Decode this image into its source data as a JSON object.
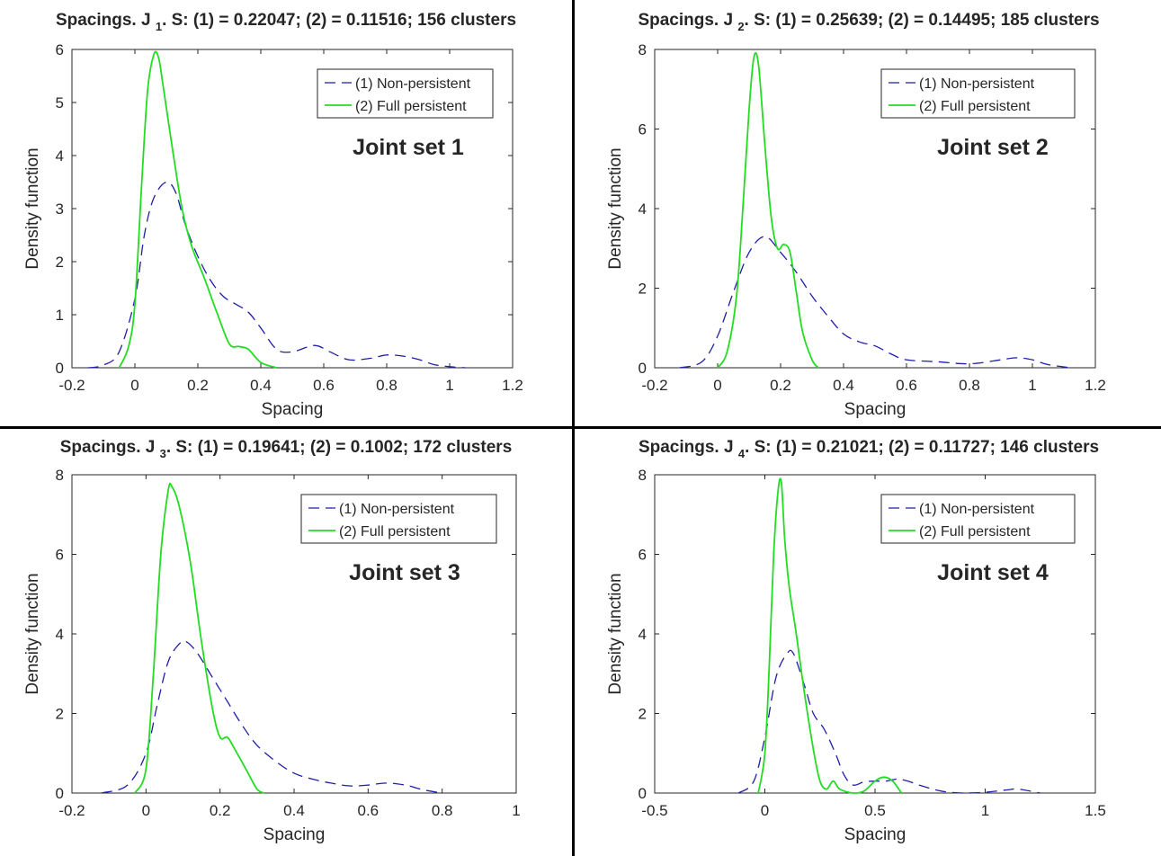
{
  "figure": {
    "colors": {
      "non_persistent": "#1f1fa8",
      "full_persistent": "#22dd22",
      "axis": "#262626"
    }
  },
  "chart_data": [
    {
      "type": "line",
      "title": "Spacings. J",
      "title_sub": "1",
      "title_rest": ". S: (1) = 0.22047; (2) = 0.11516; 156 clusters",
      "annotation": "Joint set 1",
      "xlabel": "Spacing",
      "ylabel": "Density function",
      "xlim": [
        -0.2,
        1.2
      ],
      "ylim": [
        0,
        6
      ],
      "xticks": [
        "-0.2",
        "0",
        "0.2",
        "0.4",
        "0.6",
        "0.8",
        "1",
        "1.2"
      ],
      "yticks": [
        "0",
        "1",
        "2",
        "3",
        "4",
        "5",
        "6"
      ],
      "legend_position": "top-right",
      "series": [
        {
          "name": "(1) Non-persistent",
          "style": "dashed",
          "x": [
            -0.15,
            -0.1,
            -0.05,
            0,
            0.03,
            0.06,
            0.1,
            0.13,
            0.16,
            0.2,
            0.24,
            0.28,
            0.32,
            0.36,
            0.4,
            0.45,
            0.5,
            0.57,
            0.62,
            0.68,
            0.75,
            0.8,
            0.85,
            0.9,
            0.95,
            1.0,
            1.05
          ],
          "y": [
            0,
            0.05,
            0.3,
            1.3,
            2.5,
            3.2,
            3.5,
            3.3,
            2.7,
            2.1,
            1.65,
            1.35,
            1.2,
            1.05,
            0.75,
            0.35,
            0.3,
            0.42,
            0.3,
            0.15,
            0.18,
            0.24,
            0.22,
            0.16,
            0.06,
            0.02,
            0
          ]
        },
        {
          "name": "(2) Full persistent",
          "style": "solid",
          "x": [
            -0.05,
            -0.02,
            0,
            0.02,
            0.04,
            0.06,
            0.075,
            0.09,
            0.12,
            0.15,
            0.18,
            0.22,
            0.26,
            0.3,
            0.33,
            0.36,
            0.4,
            0.45
          ],
          "y": [
            0,
            0.4,
            1.2,
            3.3,
            5.2,
            5.9,
            5.85,
            5.3,
            4.1,
            3.0,
            2.3,
            1.7,
            1.05,
            0.45,
            0.4,
            0.35,
            0.1,
            0
          ]
        }
      ]
    },
    {
      "type": "line",
      "title": "Spacings. J",
      "title_sub": "2",
      "title_rest": ". S: (1) = 0.25639; (2) = 0.14495; 185 clusters",
      "annotation": "Joint set 2",
      "xlabel": "Spacing",
      "ylabel": "Density function",
      "xlim": [
        -0.2,
        1.2
      ],
      "ylim": [
        0,
        8
      ],
      "xticks": [
        "-0.2",
        "0",
        "0.2",
        "0.4",
        "0.6",
        "0.8",
        "1",
        "1.2"
      ],
      "yticks": [
        "0",
        "2",
        "4",
        "6",
        "8"
      ],
      "legend_position": "top-right",
      "series": [
        {
          "name": "(1) Non-persistent",
          "style": "dashed",
          "x": [
            -0.12,
            -0.05,
            0,
            0.05,
            0.1,
            0.15,
            0.2,
            0.25,
            0.3,
            0.35,
            0.4,
            0.45,
            0.5,
            0.55,
            0.6,
            0.7,
            0.8,
            0.9,
            0.95,
            1.0,
            1.05,
            1.12
          ],
          "y": [
            0,
            0.15,
            0.8,
            1.9,
            2.9,
            3.3,
            2.9,
            2.4,
            1.8,
            1.3,
            0.85,
            0.65,
            0.55,
            0.35,
            0.2,
            0.15,
            0.1,
            0.2,
            0.25,
            0.2,
            0.08,
            0
          ]
        },
        {
          "name": "(2) Full persistent",
          "style": "solid",
          "x": [
            0,
            0.03,
            0.06,
            0.08,
            0.1,
            0.115,
            0.13,
            0.15,
            0.17,
            0.19,
            0.21,
            0.23,
            0.25,
            0.27,
            0.3,
            0.32
          ],
          "y": [
            0,
            0.4,
            1.8,
            4.0,
            6.5,
            7.8,
            7.6,
            5.6,
            3.8,
            3.0,
            3.1,
            2.9,
            1.9,
            0.9,
            0.2,
            0
          ]
        }
      ]
    },
    {
      "type": "line",
      "title": "Spacings. J",
      "title_sub": "3",
      "title_rest": ". S: (1) = 0.19641; (2) = 0.1002; 172 clusters",
      "annotation": "Joint set 3",
      "xlabel": "Spacing",
      "ylabel": "Density function",
      "xlim": [
        -0.2,
        1
      ],
      "ylim": [
        0,
        8
      ],
      "xticks": [
        "-0.2",
        "0",
        "0.2",
        "0.4",
        "0.6",
        "0.8",
        "1"
      ],
      "yticks": [
        "0",
        "2",
        "4",
        "6",
        "8"
      ],
      "legend_position": "top-right",
      "series": [
        {
          "name": "(1) Non-persistent",
          "style": "dashed",
          "x": [
            -0.12,
            -0.05,
            0,
            0.03,
            0.06,
            0.09,
            0.11,
            0.14,
            0.18,
            0.22,
            0.26,
            0.3,
            0.35,
            0.4,
            0.45,
            0.5,
            0.55,
            0.6,
            0.65,
            0.7,
            0.75,
            0.8
          ],
          "y": [
            0,
            0.2,
            1.0,
            2.2,
            3.3,
            3.75,
            3.8,
            3.5,
            2.9,
            2.3,
            1.7,
            1.2,
            0.8,
            0.5,
            0.35,
            0.25,
            0.18,
            0.2,
            0.25,
            0.2,
            0.08,
            0
          ]
        },
        {
          "name": "(2) Full persistent",
          "style": "solid",
          "x": [
            -0.03,
            0,
            0.02,
            0.04,
            0.06,
            0.07,
            0.09,
            0.12,
            0.15,
            0.18,
            0.2,
            0.22,
            0.24,
            0.27,
            0.3,
            0.32
          ],
          "y": [
            0,
            0.6,
            3.0,
            6.0,
            7.6,
            7.7,
            7.2,
            5.8,
            3.8,
            2.1,
            1.4,
            1.4,
            1.1,
            0.6,
            0.1,
            0
          ]
        }
      ]
    },
    {
      "type": "line",
      "title": "Spacings. J",
      "title_sub": "4",
      "title_rest": ". S: (1) = 0.21021; (2) = 0.11727; 146 clusters",
      "annotation": "Joint set 4",
      "xlabel": "Spacing",
      "ylabel": "Density function",
      "xlim": [
        -0.5,
        1.5
      ],
      "ylim": [
        0,
        8
      ],
      "xticks": [
        "-0.5",
        "0",
        "0.5",
        "1",
        "1.5"
      ],
      "yticks": [
        "0",
        "2",
        "4",
        "6",
        "8"
      ],
      "legend_position": "top-right",
      "series": [
        {
          "name": "(1) Non-persistent",
          "style": "dashed",
          "x": [
            -0.12,
            -0.05,
            0,
            0.05,
            0.1,
            0.13,
            0.18,
            0.22,
            0.27,
            0.32,
            0.36,
            0.4,
            0.45,
            0.5,
            0.55,
            0.6,
            0.65,
            0.7,
            0.8,
            0.9,
            1.0,
            1.1,
            1.15,
            1.25
          ],
          "y": [
            0,
            0.3,
            1.4,
            2.9,
            3.5,
            3.5,
            2.7,
            2.0,
            1.6,
            1.0,
            0.45,
            0.2,
            0.28,
            0.3,
            0.3,
            0.35,
            0.3,
            0.2,
            0.05,
            0,
            0.02,
            0.08,
            0.1,
            0
          ]
        },
        {
          "name": "(2) Full persistent",
          "style": "solid",
          "x": [
            -0.03,
            0,
            0.02,
            0.04,
            0.06,
            0.075,
            0.09,
            0.11,
            0.14,
            0.18,
            0.22,
            0.25,
            0.28,
            0.31,
            0.34,
            0.4,
            0.45,
            0.5,
            0.54,
            0.58,
            0.62
          ],
          "y": [
            0,
            1.0,
            3.2,
            6.0,
            7.6,
            7.8,
            6.4,
            5.2,
            4.1,
            2.5,
            1.1,
            0.3,
            0.1,
            0.3,
            0.1,
            0,
            0.05,
            0.3,
            0.4,
            0.3,
            0
          ]
        }
      ]
    }
  ]
}
